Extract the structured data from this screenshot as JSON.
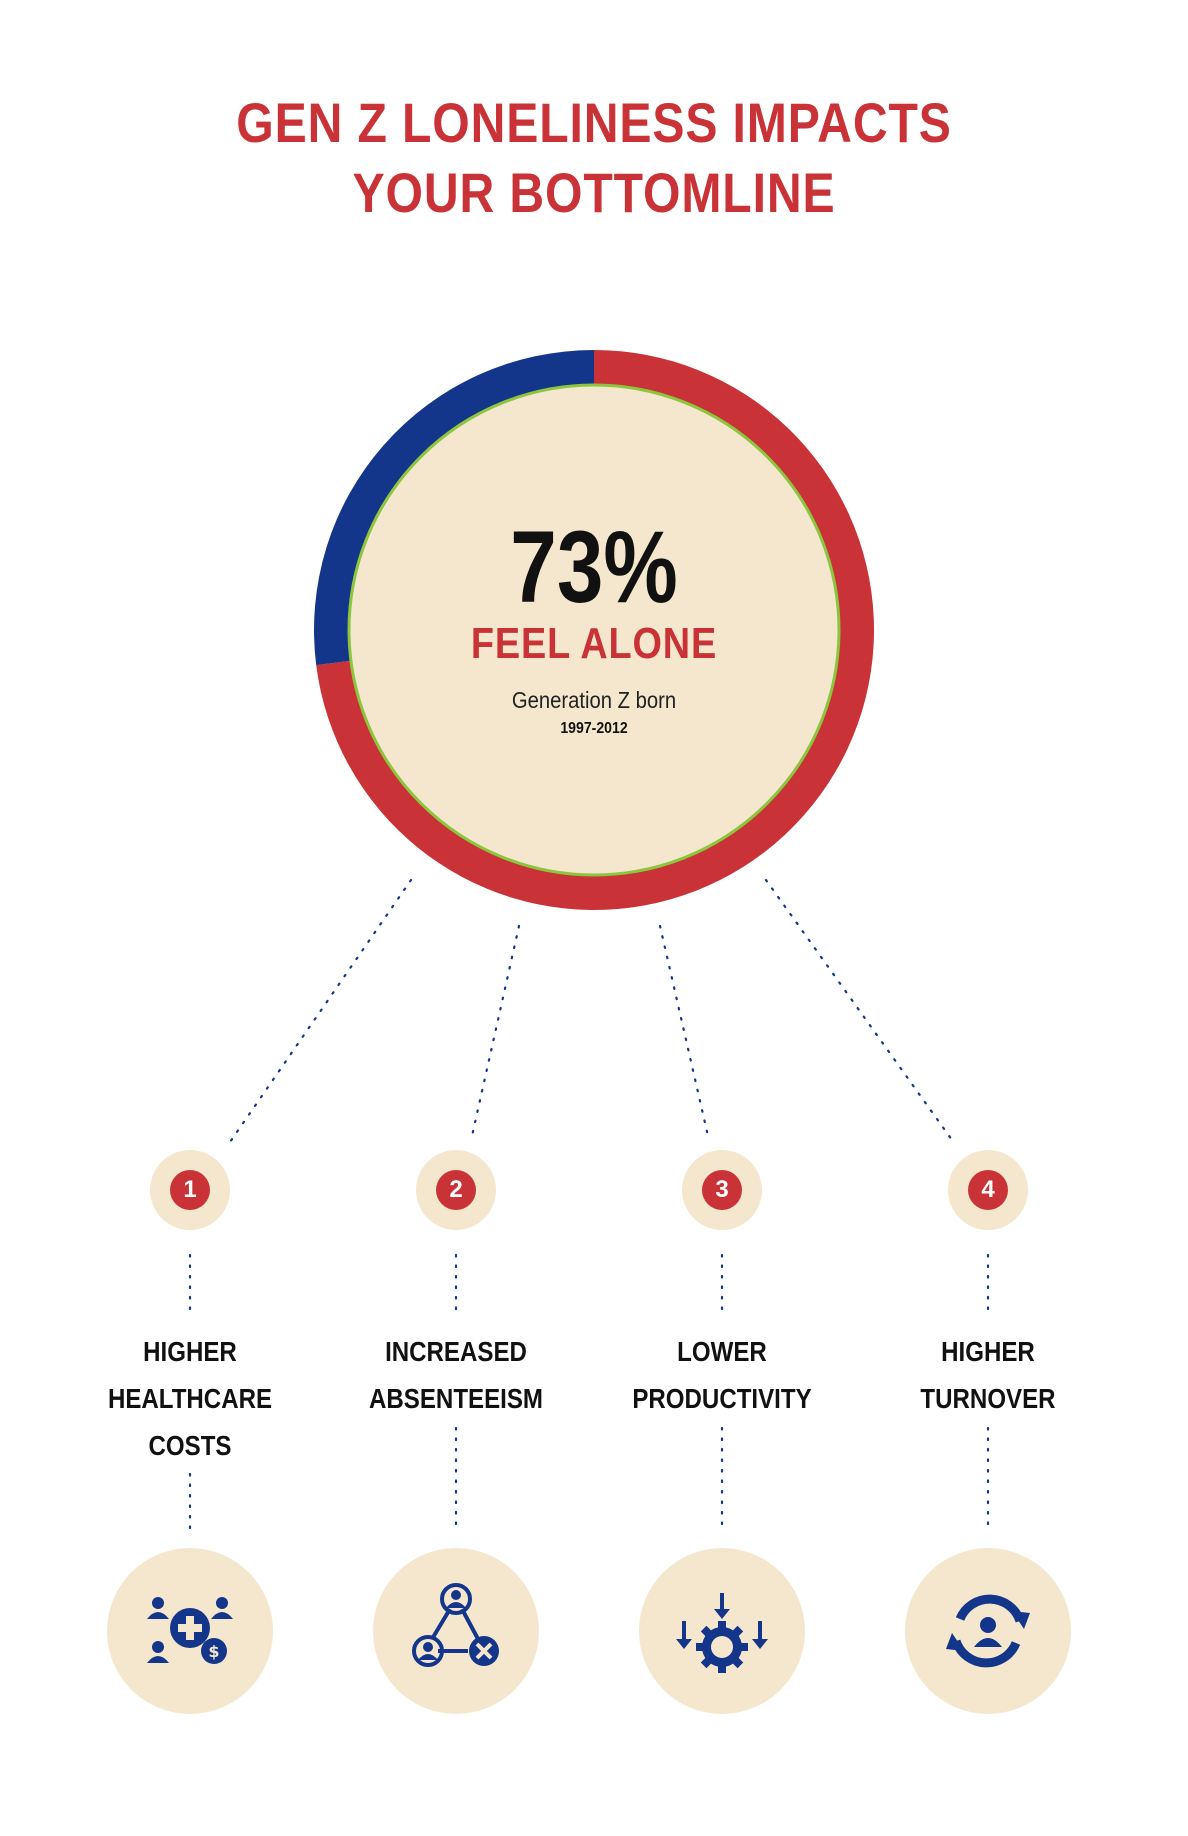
{
  "title": {
    "line1": "GEN Z LONELINESS IMPACTS",
    "line2": "YOUR BOTTOMLINE"
  },
  "colors": {
    "red": "#c93236",
    "blue": "#13358a",
    "cream": "#f5e7cd",
    "ring_inner": "#8cc63f",
    "dots": "#13358a"
  },
  "chart_data": {
    "type": "pie",
    "style": "donut",
    "values": [
      73,
      27
    ],
    "slice_colors": [
      "#c93236",
      "#13358a"
    ],
    "center_value": "73%",
    "center_label": "FEEL ALONE",
    "center_sub": "Generation Z born",
    "center_years": "1997-2012"
  },
  "impacts": [
    {
      "number": "1",
      "lines": [
        "HIGHER",
        "HEALTHCARE",
        "COSTS"
      ],
      "icon": "healthcare-cost-icon"
    },
    {
      "number": "2",
      "lines": [
        "INCREASED",
        "ABSENTEEISM"
      ],
      "icon": "absenteeism-network-icon"
    },
    {
      "number": "3",
      "lines": [
        "LOWER",
        "PRODUCTIVITY"
      ],
      "icon": "productivity-gear-icon"
    },
    {
      "number": "4",
      "lines": [
        "HIGHER",
        "TURNOVER"
      ],
      "icon": "turnover-cycle-icon"
    }
  ]
}
